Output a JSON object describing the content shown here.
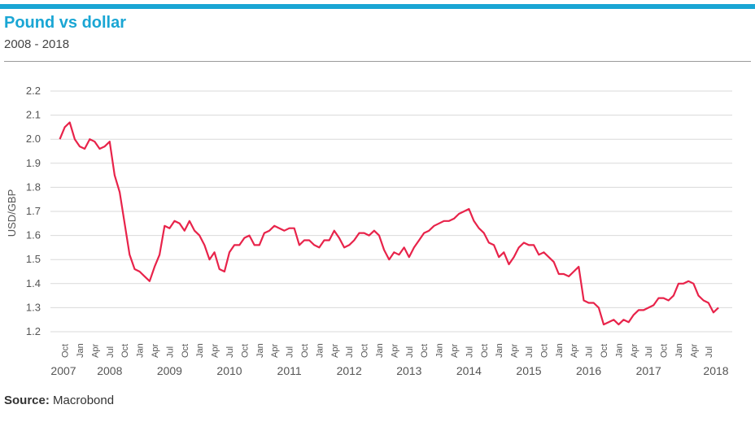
{
  "header": {
    "title": "Pound vs dollar",
    "subtitle": "2008 - 2018"
  },
  "footer": {
    "source_label": "Source:",
    "source_value": "Macrobond"
  },
  "colors": {
    "accent": "#1aa6d4",
    "series": "#e8234a",
    "grid": "#d9d9d9"
  },
  "chart_data": {
    "type": "line",
    "title": "Pound vs dollar",
    "subtitle": "2008 - 2018",
    "ylabel": "USD/GBP",
    "xlabel": "",
    "ylim": [
      1.2,
      2.2
    ],
    "yticks": [
      1.2,
      1.3,
      1.4,
      1.5,
      1.6,
      1.7,
      1.8,
      1.9,
      2.0,
      2.1,
      2.2
    ],
    "grid": "horizontal",
    "x_month_labels": [
      "Oct",
      "Jan",
      "Apr",
      "Jul",
      "Oct",
      "Jan",
      "Apr",
      "Jul",
      "Oct",
      "Jan",
      "Apr",
      "Jul",
      "Oct",
      "Jan",
      "Apr",
      "Jul",
      "Oct",
      "Jan",
      "Apr",
      "Jul",
      "Oct",
      "Jan",
      "Apr",
      "Jul",
      "Oct",
      "Jan",
      "Apr",
      "Jul",
      "Oct",
      "Jan",
      "Apr",
      "Jul",
      "Oct",
      "Jan",
      "Apr",
      "Jul",
      "Oct",
      "Jan",
      "Apr",
      "Jul",
      "Oct",
      "Jan",
      "Apr",
      "Jul"
    ],
    "x_year_labels": [
      "2007",
      "2008",
      "2009",
      "2010",
      "2011",
      "2012",
      "2013",
      "2014",
      "2015",
      "2016",
      "2017",
      "2018"
    ],
    "series": [
      {
        "x": [
          "2007-09",
          "2007-10",
          "2007-11",
          "2007-12",
          "2008-01",
          "2008-02",
          "2008-03",
          "2008-04",
          "2008-05",
          "2008-06",
          "2008-07",
          "2008-08",
          "2008-09",
          "2008-10",
          "2008-11",
          "2008-12",
          "2009-01",
          "2009-02",
          "2009-03",
          "2009-04",
          "2009-05",
          "2009-06",
          "2009-07",
          "2009-08",
          "2009-09",
          "2009-10",
          "2009-11",
          "2009-12",
          "2010-01",
          "2010-02",
          "2010-03",
          "2010-04",
          "2010-05",
          "2010-06",
          "2010-07",
          "2010-08",
          "2010-09",
          "2010-10",
          "2010-11",
          "2010-12",
          "2011-01",
          "2011-02",
          "2011-03",
          "2011-04",
          "2011-05",
          "2011-06",
          "2011-07",
          "2011-08",
          "2011-09",
          "2011-10",
          "2011-11",
          "2011-12",
          "2012-01",
          "2012-02",
          "2012-03",
          "2012-04",
          "2012-05",
          "2012-06",
          "2012-07",
          "2012-08",
          "2012-09",
          "2012-10",
          "2012-11",
          "2012-12",
          "2013-01",
          "2013-02",
          "2013-03",
          "2013-04",
          "2013-05",
          "2013-06",
          "2013-07",
          "2013-08",
          "2013-09",
          "2013-10",
          "2013-11",
          "2013-12",
          "2014-01",
          "2014-02",
          "2014-03",
          "2014-04",
          "2014-05",
          "2014-06",
          "2014-07",
          "2014-08",
          "2014-09",
          "2014-10",
          "2014-11",
          "2014-12",
          "2015-01",
          "2015-02",
          "2015-03",
          "2015-04",
          "2015-05",
          "2015-06",
          "2015-07",
          "2015-08",
          "2015-09",
          "2015-10",
          "2015-11",
          "2015-12",
          "2016-01",
          "2016-02",
          "2016-03",
          "2016-04",
          "2016-05",
          "2016-06",
          "2016-07",
          "2016-08",
          "2016-09",
          "2016-10",
          "2016-11",
          "2016-12",
          "2017-01",
          "2017-02",
          "2017-03",
          "2017-04",
          "2017-05",
          "2017-06",
          "2017-07",
          "2017-08",
          "2017-09",
          "2017-10",
          "2017-11",
          "2017-12",
          "2018-01",
          "2018-02",
          "2018-03",
          "2018-04",
          "2018-05",
          "2018-06",
          "2018-07",
          "2018-08",
          "2018-09"
        ],
        "values": [
          2.0,
          2.05,
          2.07,
          2.0,
          1.97,
          1.96,
          2.0,
          1.99,
          1.96,
          1.97,
          1.99,
          1.85,
          1.78,
          1.65,
          1.52,
          1.46,
          1.45,
          1.43,
          1.41,
          1.47,
          1.52,
          1.64,
          1.63,
          1.66,
          1.65,
          1.62,
          1.66,
          1.62,
          1.6,
          1.56,
          1.5,
          1.53,
          1.46,
          1.45,
          1.53,
          1.56,
          1.56,
          1.59,
          1.6,
          1.56,
          1.56,
          1.61,
          1.62,
          1.64,
          1.63,
          1.62,
          1.63,
          1.63,
          1.56,
          1.58,
          1.58,
          1.56,
          1.55,
          1.58,
          1.58,
          1.62,
          1.59,
          1.55,
          1.56,
          1.58,
          1.61,
          1.61,
          1.6,
          1.62,
          1.6,
          1.54,
          1.5,
          1.53,
          1.52,
          1.55,
          1.51,
          1.55,
          1.58,
          1.61,
          1.62,
          1.64,
          1.65,
          1.66,
          1.66,
          1.67,
          1.69,
          1.7,
          1.71,
          1.66,
          1.63,
          1.61,
          1.57,
          1.56,
          1.51,
          1.53,
          1.48,
          1.51,
          1.55,
          1.57,
          1.56,
          1.56,
          1.52,
          1.53,
          1.51,
          1.49,
          1.44,
          1.44,
          1.43,
          1.45,
          1.47,
          1.33,
          1.32,
          1.32,
          1.3,
          1.23,
          1.24,
          1.25,
          1.23,
          1.25,
          1.24,
          1.27,
          1.29,
          1.29,
          1.3,
          1.31,
          1.34,
          1.34,
          1.33,
          1.35,
          1.4,
          1.4,
          1.41,
          1.4,
          1.35,
          1.33,
          1.32,
          1.28,
          1.3
        ]
      }
    ]
  }
}
